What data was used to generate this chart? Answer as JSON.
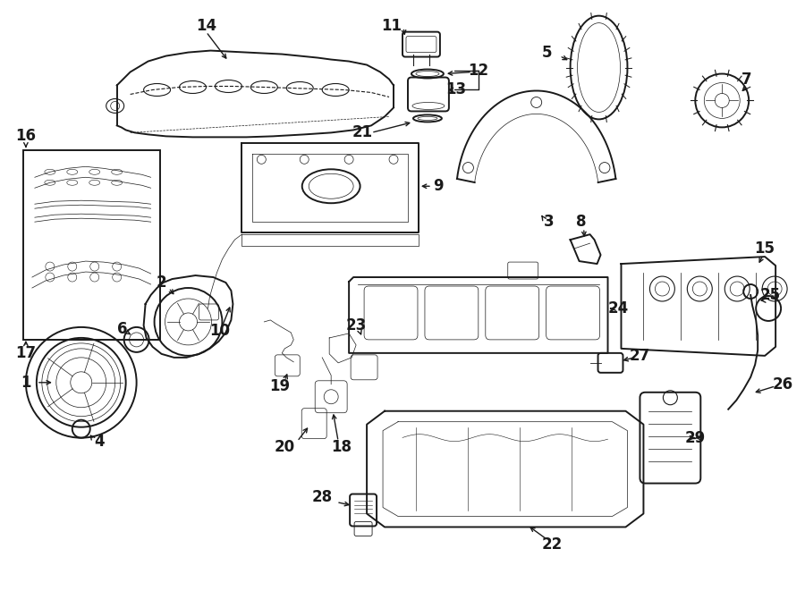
{
  "bg_color": "#ffffff",
  "line_color": "#1a1a1a",
  "fig_width": 9.0,
  "fig_height": 6.61,
  "lw_main": 1.4,
  "lw_detail": 0.8,
  "lw_thin": 0.5,
  "label_fontsize": 12
}
